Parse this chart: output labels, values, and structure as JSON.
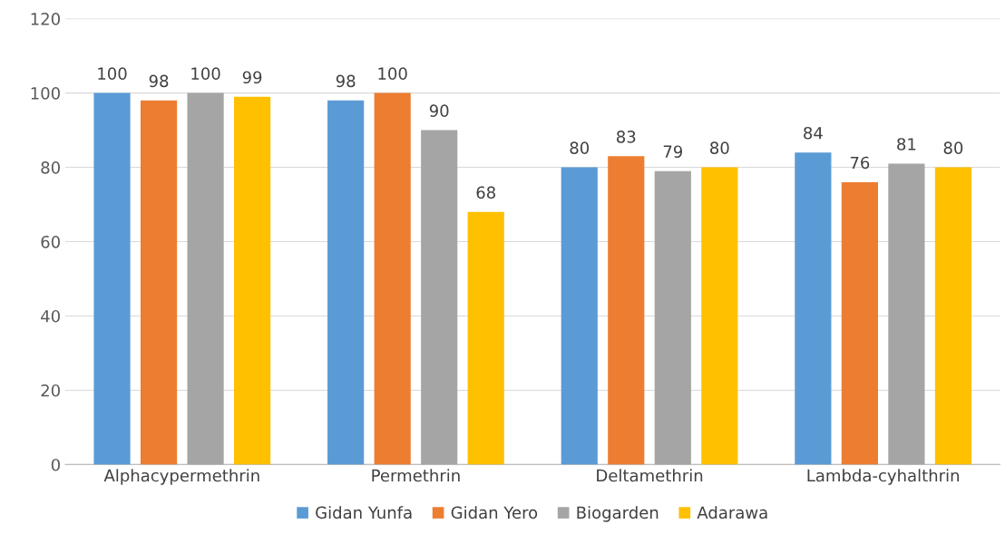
{
  "chart_data": {
    "type": "bar",
    "categories": [
      "Alphacypermethrin",
      "Permethrin",
      "Deltamethrin",
      "Lambda-cyhalthrin"
    ],
    "series": [
      {
        "name": "Gidan Yunfa",
        "color": "#5b9bd5",
        "values": [
          100,
          98,
          80,
          84
        ]
      },
      {
        "name": "Gidan Yero",
        "color": "#ed7d31",
        "values": [
          98,
          100,
          83,
          76
        ]
      },
      {
        "name": "Biogarden",
        "color": "#a5a5a5",
        "values": [
          100,
          90,
          79,
          81
        ]
      },
      {
        "name": "Adarawa",
        "color": "#ffc000",
        "values": [
          99,
          68,
          80,
          80
        ]
      }
    ],
    "ylim": [
      0,
      120
    ],
    "yticks": [
      0,
      20,
      40,
      60,
      80,
      100,
      120
    ],
    "grid": "y",
    "legend": "bottom",
    "data_labels": true
  }
}
